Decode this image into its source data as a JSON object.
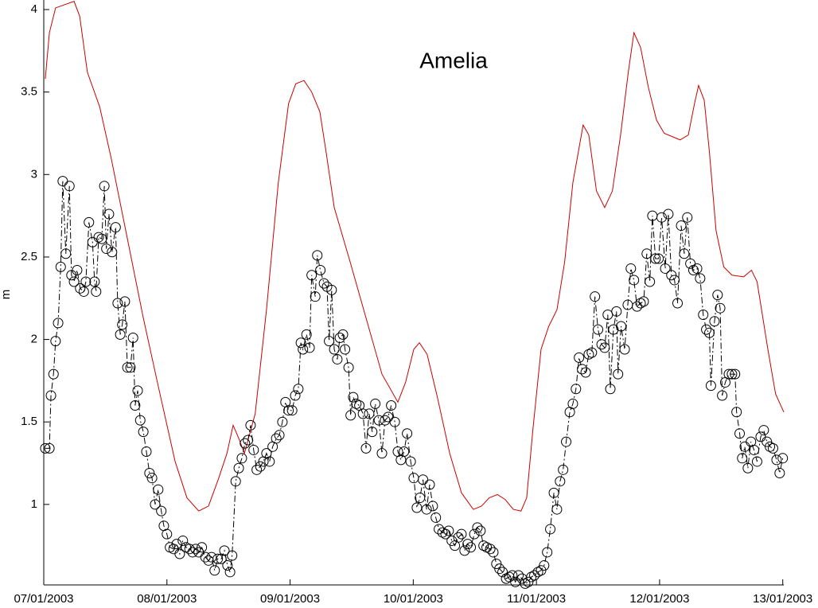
{
  "chart_data": {
    "type": "line",
    "title": "Amelia",
    "ylabel": "m",
    "xlim": [
      0,
      144.2
    ],
    "ylim": [
      0.512,
      4.058
    ],
    "xticks": [
      {
        "value": 0,
        "label": "07/01/2003"
      },
      {
        "value": 24,
        "label": "08/01/2003"
      },
      {
        "value": 48,
        "label": "09/01/2003"
      },
      {
        "value": 72,
        "label": "10/01/2003"
      },
      {
        "value": 96,
        "label": "11/01/2003"
      },
      {
        "value": 120,
        "label": "12/01/2003"
      },
      {
        "value": 144,
        "label": "13/01/2003"
      }
    ],
    "yticks": [
      1,
      1.5,
      2,
      2.5,
      3,
      3.5,
      4
    ],
    "grid": false,
    "series": [
      {
        "color": "#cc0000",
        "marker": "none",
        "linestyle": "solid",
        "x": [
          0.3,
          1.1,
          2.3,
          5.9,
          7.0,
          8.5,
          10.9,
          13.2,
          16.3,
          19.4,
          22.5,
          25.6,
          27.9,
          30.2,
          32.1,
          34.1,
          35.7,
          36.9,
          38.0,
          39.1,
          41.2,
          43.4,
          45.7,
          47.7,
          49.1,
          50.7,
          52.2,
          53.8,
          55.0,
          56.6,
          59.7,
          62.8,
          65.9,
          69.0,
          70.5,
          72.1,
          73.2,
          74.7,
          76.7,
          79.1,
          81.4,
          83.7,
          85.3,
          86.8,
          88.4,
          89.9,
          91.5,
          93.0,
          94.1,
          95.3,
          96.9,
          98.4,
          100.0,
          101.5,
          103.1,
          105.1,
          106.2,
          107.7,
          109.3,
          110.8,
          112.4,
          113.9,
          115.0,
          116.3,
          117.8,
          119.4,
          120.9,
          124.0,
          125.6,
          126.8,
          127.6,
          128.7,
          129.7,
          131.0,
          132.5,
          134.1,
          136.4,
          137.9,
          139.0,
          141.1,
          142.6,
          144.2
        ],
        "values": [
          3.58,
          3.86,
          4.01,
          4.05,
          3.96,
          3.62,
          3.41,
          3.09,
          2.61,
          2.13,
          1.69,
          1.26,
          1.04,
          0.96,
          0.99,
          1.16,
          1.31,
          1.48,
          1.4,
          1.31,
          1.55,
          2.18,
          2.95,
          3.43,
          3.55,
          3.57,
          3.5,
          3.38,
          3.14,
          2.8,
          2.47,
          2.13,
          1.79,
          1.62,
          1.74,
          1.94,
          1.98,
          1.91,
          1.65,
          1.31,
          1.07,
          0.97,
          0.99,
          1.04,
          1.06,
          1.03,
          0.97,
          0.96,
          1.04,
          1.45,
          1.94,
          2.08,
          2.18,
          2.47,
          2.95,
          3.3,
          3.24,
          2.9,
          2.8,
          2.9,
          3.24,
          3.62,
          3.86,
          3.77,
          3.53,
          3.33,
          3.25,
          3.21,
          3.24,
          3.43,
          3.54,
          3.45,
          3.14,
          2.66,
          2.44,
          2.39,
          2.38,
          2.42,
          2.35,
          1.94,
          1.67,
          1.56
        ]
      },
      {
        "color": "#000000",
        "marker": "circle",
        "linestyle": "dashdot",
        "x": [
          0.3,
          1.1,
          1.4,
          1.9,
          2.3,
          2.8,
          3.3,
          3.7,
          4.3,
          5.0,
          5.4,
          5.9,
          6.5,
          7.1,
          7.8,
          8.2,
          8.8,
          9.5,
          9.9,
          10.2,
          10.7,
          11.3,
          11.8,
          12.2,
          12.7,
          13.3,
          14.0,
          14.4,
          14.9,
          15.3,
          15.8,
          16.3,
          16.9,
          17.4,
          17.8,
          18.3,
          18.8,
          19.4,
          20.0,
          20.6,
          21.1,
          21.7,
          22.3,
          22.9,
          23.4,
          24.0,
          24.6,
          25.3,
          25.9,
          26.5,
          27.1,
          27.7,
          28.4,
          29.0,
          29.6,
          30.2,
          30.8,
          31.5,
          32.1,
          32.7,
          33.3,
          33.9,
          34.6,
          35.2,
          35.8,
          36.3,
          36.7,
          37.4,
          38.0,
          38.6,
          39.2,
          39.8,
          40.3,
          40.9,
          41.5,
          42.2,
          42.8,
          43.4,
          44.0,
          44.6,
          45.3,
          45.9,
          46.5,
          47.1,
          47.7,
          48.4,
          49.0,
          49.6,
          50.1,
          50.5,
          51.2,
          51.8,
          52.2,
          52.9,
          53.3,
          53.9,
          54.6,
          55.2,
          55.6,
          56.1,
          56.6,
          57.2,
          57.7,
          58.3,
          58.7,
          59.4,
          59.8,
          60.3,
          60.9,
          61.5,
          62.2,
          62.8,
          63.4,
          64.0,
          64.6,
          65.3,
          65.9,
          66.5,
          67.1,
          67.7,
          68.4,
          69.0,
          69.6,
          70.2,
          70.8,
          71.5,
          72.1,
          72.7,
          73.3,
          73.9,
          74.6,
          75.2,
          75.8,
          76.4,
          77.0,
          77.7,
          78.3,
          78.9,
          79.5,
          80.1,
          80.8,
          81.4,
          82.0,
          82.6,
          83.2,
          83.9,
          84.5,
          85.1,
          85.7,
          86.3,
          87.0,
          87.6,
          88.2,
          88.8,
          89.4,
          90.1,
          90.7,
          91.3,
          91.9,
          92.5,
          93.2,
          93.8,
          94.4,
          95.0,
          95.6,
          96.3,
          96.9,
          97.5,
          98.1,
          98.7,
          99.4,
          100.0,
          100.6,
          101.2,
          101.8,
          102.5,
          103.1,
          103.7,
          104.3,
          104.9,
          105.6,
          106.2,
          106.8,
          107.4,
          108.0,
          108.7,
          109.3,
          109.9,
          110.4,
          111.0,
          111.6,
          111.9,
          112.5,
          113.2,
          113.8,
          114.4,
          115.0,
          115.6,
          116.3,
          116.9,
          117.5,
          118.1,
          118.6,
          119.2,
          119.8,
          120.4,
          121.1,
          121.7,
          122.3,
          122.9,
          123.5,
          124.2,
          124.8,
          125.4,
          126.0,
          126.6,
          127.3,
          127.9,
          128.5,
          129.1,
          129.7,
          130.0,
          130.7,
          131.3,
          131.8,
          132.2,
          132.8,
          133.5,
          134.1,
          134.7,
          135.0,
          135.6,
          136.1,
          136.6,
          137.2,
          137.8,
          138.4,
          139.0,
          139.7,
          140.3,
          140.9,
          141.5,
          142.1,
          142.8,
          143.4,
          144.0
        ],
        "values": [
          1.34,
          1.34,
          1.66,
          1.79,
          1.99,
          2.1,
          2.44,
          2.96,
          2.52,
          2.93,
          2.39,
          2.35,
          2.42,
          2.31,
          2.29,
          2.35,
          2.71,
          2.59,
          2.35,
          2.29,
          2.62,
          2.61,
          2.93,
          2.55,
          2.76,
          2.53,
          2.68,
          2.22,
          2.03,
          2.09,
          2.23,
          1.83,
          1.83,
          2.01,
          1.6,
          1.69,
          1.51,
          1.44,
          1.32,
          1.19,
          1.16,
          1.0,
          1.09,
          0.96,
          0.87,
          0.82,
          0.74,
          0.73,
          0.76,
          0.7,
          0.78,
          0.74,
          0.73,
          0.71,
          0.73,
          0.71,
          0.74,
          0.68,
          0.66,
          0.68,
          0.6,
          0.67,
          0.67,
          0.72,
          0.63,
          0.59,
          0.69,
          1.14,
          1.22,
          1.28,
          1.37,
          1.39,
          1.48,
          1.33,
          1.21,
          1.23,
          1.26,
          1.31,
          1.26,
          1.35,
          1.4,
          1.42,
          1.5,
          1.62,
          1.57,
          1.57,
          1.66,
          1.7,
          1.98,
          1.94,
          2.03,
          1.95,
          2.39,
          2.26,
          2.51,
          2.42,
          2.34,
          2.32,
          1.99,
          2.3,
          1.94,
          1.88,
          2.01,
          2.03,
          1.94,
          1.83,
          1.54,
          1.65,
          1.61,
          1.6,
          1.55,
          1.34,
          1.55,
          1.44,
          1.61,
          1.51,
          1.31,
          1.51,
          1.53,
          1.6,
          1.5,
          1.32,
          1.27,
          1.32,
          1.43,
          1.26,
          1.16,
          0.98,
          1.04,
          1.15,
          0.97,
          1.12,
          0.99,
          0.92,
          0.85,
          0.83,
          0.82,
          0.84,
          0.78,
          0.75,
          0.8,
          0.82,
          0.72,
          0.76,
          0.74,
          0.82,
          0.86,
          0.84,
          0.75,
          0.74,
          0.73,
          0.71,
          0.64,
          0.61,
          0.59,
          0.55,
          0.56,
          0.57,
          0.53,
          0.57,
          0.55,
          0.52,
          0.53,
          0.56,
          0.57,
          0.59,
          0.6,
          0.63,
          0.71,
          0.85,
          1.07,
          0.97,
          1.14,
          1.21,
          1.38,
          1.56,
          1.61,
          1.7,
          1.89,
          1.82,
          1.8,
          1.91,
          1.92,
          2.26,
          2.06,
          1.97,
          1.95,
          2.15,
          1.7,
          2.06,
          2.17,
          1.79,
          2.08,
          1.94,
          2.21,
          2.43,
          2.36,
          2.2,
          2.22,
          2.23,
          2.52,
          2.35,
          2.75,
          2.49,
          2.49,
          2.74,
          2.43,
          2.76,
          2.39,
          2.36,
          2.22,
          2.69,
          2.52,
          2.74,
          2.46,
          2.42,
          2.43,
          2.37,
          2.15,
          2.06,
          2.04,
          1.72,
          2.11,
          2.27,
          2.19,
          1.66,
          1.74,
          1.79,
          1.79,
          1.79,
          1.56,
          1.43,
          1.28,
          1.35,
          1.22,
          1.38,
          1.33,
          1.26,
          1.41,
          1.45,
          1.38,
          1.35,
          1.34,
          1.27,
          1.19,
          1.28
        ]
      }
    ]
  }
}
